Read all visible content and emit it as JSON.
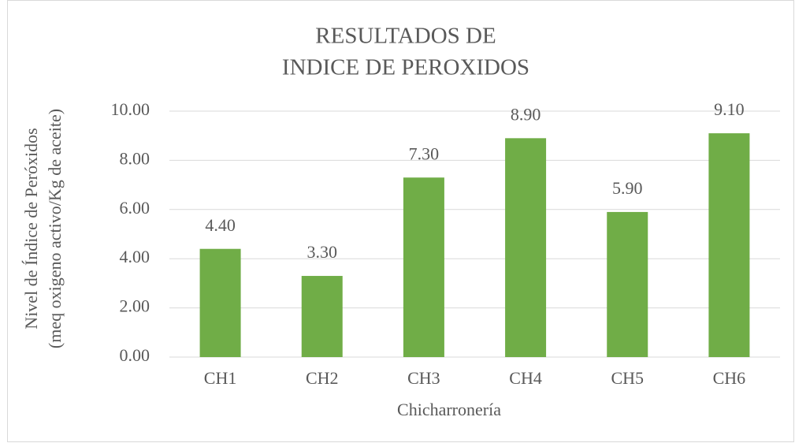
{
  "chart_data": {
    "type": "bar",
    "title": [
      "RESULTADOS DE",
      "INDICE DE PEROXIDOS"
    ],
    "x_label": "Chicharronería",
    "y_label": [
      "Nivel de Índice de Peróxidos",
      "(meq oxigeno activo/Kg de aceite)"
    ],
    "categories": [
      "CH1",
      "CH2",
      "CH3",
      "CH4",
      "CH5",
      "CH6"
    ],
    "values": [
      4.4,
      3.3,
      7.3,
      8.9,
      5.9,
      9.1
    ],
    "value_labels": [
      "4.40",
      "3.30",
      "7.30",
      "8.90",
      "5.90",
      "9.10"
    ],
    "color": "#70ad47",
    "ylim": [
      0,
      10
    ],
    "yticks": [
      {
        "value": 0,
        "label": "0.00"
      },
      {
        "value": 2,
        "label": "2.00"
      },
      {
        "value": 4,
        "label": "4.00"
      },
      {
        "value": 6,
        "label": "6.00"
      },
      {
        "value": 8,
        "label": "8.00"
      },
      {
        "value": 10,
        "label": "10.00"
      }
    ],
    "grid": true
  }
}
